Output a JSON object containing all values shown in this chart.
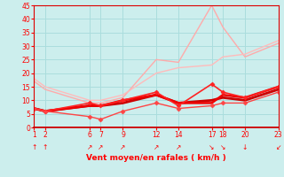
{
  "background_color": "#cceeed",
  "grid_color": "#aadddd",
  "xlabel": "Vent moyen/en rafales ( km/h )",
  "xlabel_color": "#ff0000",
  "xlim": [
    1,
    23
  ],
  "ylim": [
    0,
    45
  ],
  "xticks": [
    1,
    2,
    6,
    7,
    9,
    12,
    14,
    17,
    18,
    20,
    23
  ],
  "yticks": [
    0,
    5,
    10,
    15,
    20,
    25,
    30,
    35,
    40,
    45
  ],
  "wind_arrows": [
    {
      "x": 1,
      "sym": "↑"
    },
    {
      "x": 2,
      "sym": "↑"
    },
    {
      "x": 6,
      "sym": "↗"
    },
    {
      "x": 7,
      "sym": "↗"
    },
    {
      "x": 9,
      "sym": "↗"
    },
    {
      "x": 12,
      "sym": "↗"
    },
    {
      "x": 14,
      "sym": "↗"
    },
    {
      "x": 17,
      "sym": "↘"
    },
    {
      "x": 18,
      "sym": "↘"
    },
    {
      "x": 20,
      "sym": "↓"
    },
    {
      "x": 23,
      "sym": "↙"
    }
  ],
  "lines": [
    {
      "x": [
        1,
        2,
        6,
        7,
        9,
        12,
        14,
        17,
        18,
        20,
        23
      ],
      "y": [
        17,
        14,
        9,
        9,
        11,
        25,
        24,
        45,
        37,
        26,
        31
      ],
      "color": "#ffaaaa",
      "lw": 1.0,
      "marker": null,
      "ms": null
    },
    {
      "x": [
        1,
        2,
        6,
        7,
        9,
        12,
        14,
        17,
        18,
        20,
        23
      ],
      "y": [
        18,
        15,
        10,
        10,
        12,
        20,
        22,
        23,
        26,
        27,
        32
      ],
      "color": "#ffbbbb",
      "lw": 1.0,
      "marker": null,
      "ms": null
    },
    {
      "x": [
        1,
        2,
        6,
        7,
        9,
        12,
        14,
        17,
        18,
        20,
        23
      ],
      "y": [
        7,
        6,
        8,
        8,
        9,
        12,
        9,
        10,
        11,
        10,
        14
      ],
      "color": "#cc0000",
      "lw": 2.0,
      "marker": null,
      "ms": null
    },
    {
      "x": [
        1,
        2,
        6,
        7,
        9,
        12,
        14,
        17,
        18,
        20,
        23
      ],
      "y": [
        7,
        6,
        8,
        8,
        10,
        12,
        9,
        9,
        12,
        11,
        15
      ],
      "color": "#ee0000",
      "lw": 1.8,
      "marker": null,
      "ms": null
    },
    {
      "x": [
        1,
        2,
        6,
        7,
        9,
        12,
        14,
        17,
        18,
        20,
        23
      ],
      "y": [
        7,
        6,
        9,
        8,
        10,
        13,
        8,
        16,
        13,
        11,
        15
      ],
      "color": "#ff2222",
      "lw": 1.2,
      "marker": "D",
      "ms": 2.5
    },
    {
      "x": [
        1,
        2,
        6,
        7,
        9,
        12,
        14,
        17,
        18,
        20,
        23
      ],
      "y": [
        7,
        6,
        4,
        3,
        6,
        9,
        7,
        8,
        9,
        9,
        13
      ],
      "color": "#ff4444",
      "lw": 1.0,
      "marker": "D",
      "ms": 2.5
    }
  ]
}
